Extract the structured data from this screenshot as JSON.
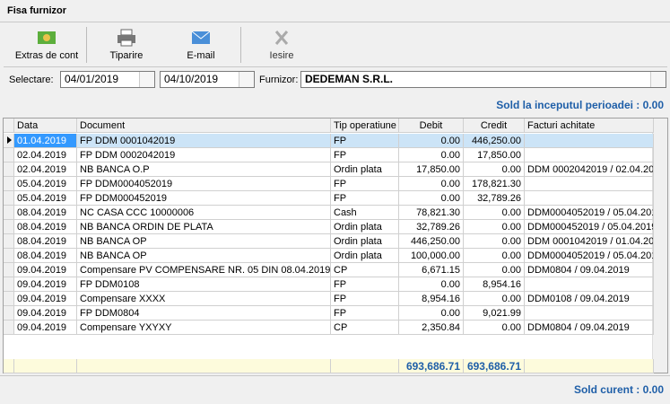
{
  "window": {
    "title": "Fisa furnizor"
  },
  "toolbar": [
    "Extras de cont",
    "Tiparire",
    "E-mail",
    "Iesire"
  ],
  "filter": {
    "label": "Selectare:",
    "date_from": "04/01/2019",
    "date_to": "04/10/2019",
    "supplier_label": "Furnizor:",
    "supplier": "DEDEMAN S.R.L."
  },
  "opening_balance": "Sold la inceputul perioadei : 0.00",
  "table": {
    "headers": [
      "Data",
      "Document",
      "Tip operatiune",
      "Debit",
      "Credit",
      "Facturi achitate"
    ],
    "rows": [
      [
        "01.04.2019",
        "FP DDM 0001042019",
        "FP",
        "0.00",
        "446,250.00",
        null
      ],
      [
        "02.04.2019",
        "FP DDM 0002042019",
        "FP",
        "0.00",
        "17,850.00",
        null
      ],
      [
        "02.04.2019",
        "NB BANCA O.P",
        "Ordin plata",
        "17,850.00",
        "0.00",
        "DDM 0002042019 / 02.04.20"
      ],
      [
        "05.04.2019",
        "FP DDM0004052019",
        "FP",
        "0.00",
        "178,821.30",
        null
      ],
      [
        "05.04.2019",
        "FP DDM000452019",
        "FP",
        "0.00",
        "32,789.26",
        null
      ],
      [
        "08.04.2019",
        "NC CASA CCC 10000006",
        "Cash",
        "78,821.30",
        "0.00",
        "DDM0004052019 / 05.04.201"
      ],
      [
        "08.04.2019",
        "NB BANCA ORDIN DE PLATA",
        "Ordin plata",
        "32,789.26",
        "0.00",
        "DDM000452019 / 05.04.2019"
      ],
      [
        "08.04.2019",
        "NB BANCA OP",
        "Ordin plata",
        "446,250.00",
        "0.00",
        "DDM 0001042019 / 01.04.20"
      ],
      [
        "08.04.2019",
        "NB BANCA OP",
        "Ordin plata",
        "100,000.00",
        "0.00",
        "DDM0004052019 / 05.04.201"
      ],
      [
        "09.04.2019",
        "Compensare PV COMPENSARE NR. 05 DIN 08.04.2019",
        "CP",
        "6,671.15",
        "0.00",
        "DDM0804 / 09.04.2019"
      ],
      [
        "09.04.2019",
        "FP DDM0108",
        "FP",
        "0.00",
        "8,954.16",
        null
      ],
      [
        "09.04.2019",
        "Compensare XXXX",
        "FP",
        "8,954.16",
        "0.00",
        "DDM0108 / 09.04.2019"
      ],
      [
        "09.04.2019",
        "FP DDM0804",
        "FP",
        "0.00",
        "9,021.99",
        null
      ],
      [
        "09.04.2019",
        "Compensare YXYXY",
        "CP",
        "2,350.84",
        "0.00",
        "DDM0804 / 09.04.2019"
      ]
    ],
    "totals": {
      "debit": "693,686.71",
      "credit": "693,686.71"
    }
  },
  "closing_balance": "Sold curent : 0.00"
}
